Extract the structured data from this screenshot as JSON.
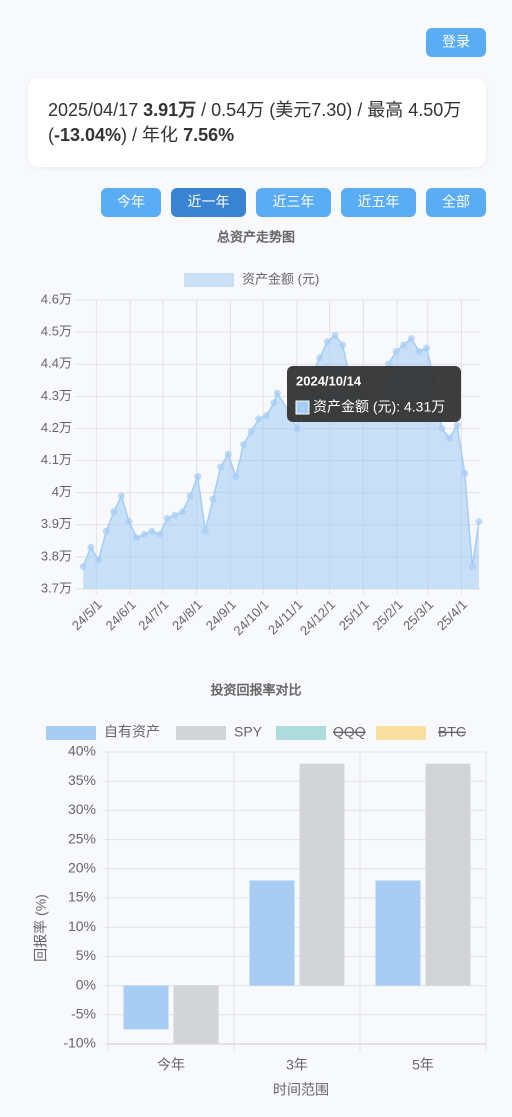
{
  "header": {
    "login": "登录"
  },
  "summary": {
    "date": "2025/04/17",
    "total": "3.91万",
    "detail": "/ 0.54万 (美元7.30) / 最高 4.50万(",
    "drawdown": "-13.04%",
    "tail": ") / 年化",
    "annual": "7.56%"
  },
  "ranges": {
    "buttons": [
      "今年",
      "近一年",
      "近三年",
      "近五年",
      "全部"
    ],
    "active": 1
  },
  "chart_data": [
    {
      "type": "line",
      "title": "总资产走势图",
      "area": true,
      "x": [
        "2024-04-19",
        "2024-04-26",
        "2024-05-03",
        "2024-05-10",
        "2024-05-17",
        "2024-05-24",
        "2024-05-31",
        "2024-06-07",
        "2024-06-14",
        "2024-06-21",
        "2024-06-28",
        "2024-07-05",
        "2024-07-12",
        "2024-07-19",
        "2024-07-26",
        "2024-08-02",
        "2024-08-09",
        "2024-08-16",
        "2024-08-23",
        "2024-08-30",
        "2024-09-06",
        "2024-09-13",
        "2024-09-20",
        "2024-09-27",
        "2024-10-04",
        "2024-10-11",
        "2024-10-14",
        "2024-10-25",
        "2024-11-01",
        "2024-11-08",
        "2024-11-15",
        "2024-11-22",
        "2024-11-29",
        "2024-12-06",
        "2024-12-13",
        "2024-12-20",
        "2024-12-27",
        "2025-01-03",
        "2025-01-10",
        "2025-01-17",
        "2025-01-24",
        "2025-01-31",
        "2025-02-07",
        "2025-02-14",
        "2025-02-21",
        "2025-02-28",
        "2025-03-07",
        "2025-03-14",
        "2025-03-21",
        "2025-03-28",
        "2025-04-04",
        "2025-04-11",
        "2025-04-17"
      ],
      "series": [
        {
          "name": "资产金额 (元)",
          "color": "#a6cdf3",
          "values": [
            3.77,
            3.83,
            3.79,
            3.88,
            3.94,
            3.99,
            3.91,
            3.86,
            3.87,
            3.88,
            3.87,
            3.92,
            3.93,
            3.94,
            3.99,
            4.05,
            3.88,
            3.98,
            4.08,
            4.12,
            4.05,
            4.15,
            4.19,
            4.23,
            4.24,
            4.28,
            4.31,
            4.25,
            4.2,
            4.38,
            4.37,
            4.42,
            4.47,
            4.49,
            4.46,
            4.35,
            4.37,
            4.3,
            4.24,
            4.33,
            4.4,
            4.44,
            4.46,
            4.48,
            4.44,
            4.45,
            4.35,
            4.2,
            4.17,
            4.21,
            4.06,
            3.77,
            3.91
          ]
        }
      ],
      "xlim": [
        "2024-04-16",
        "2025-04-18"
      ],
      "xticks": [
        {
          "value": "2024-05-01",
          "label": "24/5/1"
        },
        {
          "value": "2024-06-01",
          "label": "24/6/1"
        },
        {
          "value": "2024-07-01",
          "label": "24/7/1"
        },
        {
          "value": "2024-08-01",
          "label": "24/8/1"
        },
        {
          "value": "2024-09-01",
          "label": "24/9/1"
        },
        {
          "value": "2024-10-01",
          "label": "24/10/1"
        },
        {
          "value": "2024-11-01",
          "label": "24/11/1"
        },
        {
          "value": "2024-12-01",
          "label": "24/12/1"
        },
        {
          "value": "2025-01-01",
          "label": "25/1/1"
        },
        {
          "value": "2025-02-01",
          "label": "25/2/1"
        },
        {
          "value": "2025-03-01",
          "label": "25/3/1"
        },
        {
          "value": "2025-04-01",
          "label": "25/4/1"
        }
      ],
      "ylim": [
        3.7,
        4.6
      ],
      "yticks": [
        {
          "value": 3.7,
          "label": "3.7万"
        },
        {
          "value": 3.8,
          "label": "3.8万"
        },
        {
          "value": 3.9,
          "label": "3.9万"
        },
        {
          "value": 4,
          "label": "4万"
        },
        {
          "value": 4.1,
          "label": "4.1万"
        },
        {
          "value": 4.2,
          "label": "4.2万"
        },
        {
          "value": 4.3,
          "label": "4.3万"
        },
        {
          "value": 4.4,
          "label": "4.4万"
        },
        {
          "value": 4.5,
          "label": "4.5万"
        },
        {
          "value": 4.6,
          "label": "4.6万"
        }
      ],
      "grid": true,
      "legend": "top",
      "tooltip": {
        "date": "2024/10/14",
        "label": "资产金额 (元): 4.31万"
      }
    },
    {
      "type": "bar",
      "title": "投资回报率对比",
      "x_label": "时间范围",
      "y_label": "回报率 (%)",
      "categories": [
        "今年",
        "3年",
        "5年"
      ],
      "series": [
        {
          "name": "自有资产",
          "color": "#a8cdf3",
          "values": [
            -7.5,
            18,
            18
          ]
        },
        {
          "name": "SPY",
          "color": "#d3d4d6",
          "values": [
            -10,
            38,
            38
          ]
        },
        {
          "name": "QQQ",
          "color": "#aedcdc",
          "hidden": true
        },
        {
          "name": "BTC",
          "color": "#f9e0a0",
          "hidden": true
        }
      ],
      "ylim": [
        -10,
        40
      ],
      "yticks": [
        {
          "value": -10,
          "label": "-10%"
        },
        {
          "value": -5,
          "label": "-5%"
        },
        {
          "value": 0,
          "label": "0%"
        },
        {
          "value": 5,
          "label": "5%"
        },
        {
          "value": 10,
          "label": "10%"
        },
        {
          "value": 15,
          "label": "15%"
        },
        {
          "value": 20,
          "label": "20%"
        },
        {
          "value": 25,
          "label": "25%"
        },
        {
          "value": 30,
          "label": "30%"
        },
        {
          "value": 35,
          "label": "35%"
        },
        {
          "value": 40,
          "label": "40%"
        }
      ],
      "grid": true,
      "legend": "top"
    }
  ]
}
